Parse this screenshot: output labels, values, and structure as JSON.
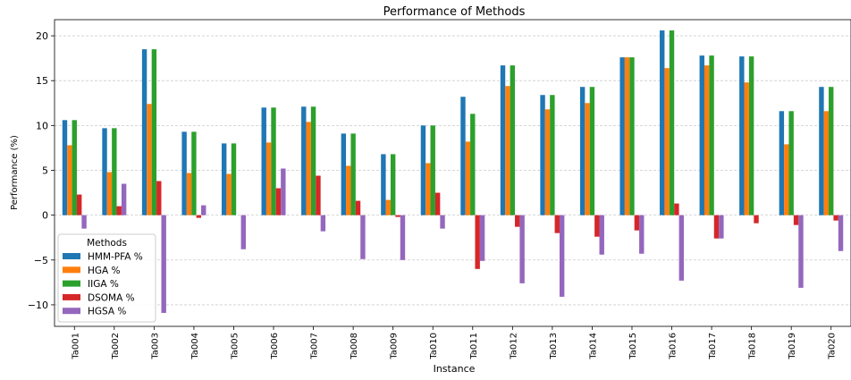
{
  "chart_data": {
    "type": "bar",
    "title": "Performance of Methods",
    "xlabel": "Instance",
    "ylabel": "Performance (%)",
    "ylim": [
      -12.4,
      21.8
    ],
    "yticks": [
      -10,
      -5,
      0,
      5,
      10,
      15,
      20
    ],
    "ytick_labels": [
      "−10",
      "−5",
      "0",
      "5",
      "10",
      "15",
      "20"
    ],
    "grid": true,
    "legend_position": "lower-left",
    "legend_title": "Methods",
    "categories": [
      "Ta001",
      "Ta002",
      "Ta003",
      "Ta004",
      "Ta005",
      "Ta006",
      "Ta007",
      "Ta008",
      "Ta009",
      "Ta010",
      "Ta011",
      "Ta012",
      "Ta013",
      "Ta014",
      "Ta015",
      "Ta016",
      "Ta017",
      "Ta018",
      "Ta019",
      "Ta020"
    ],
    "series": [
      {
        "name": "HMM-PFA %",
        "color": "#1f77b4",
        "values": [
          10.6,
          9.7,
          18.5,
          9.3,
          8.0,
          12.0,
          12.1,
          9.1,
          6.8,
          10.0,
          13.2,
          16.7,
          13.4,
          14.3,
          17.6,
          20.6,
          17.8,
          17.7,
          11.6,
          14.3
        ]
      },
      {
        "name": "HGA %",
        "color": "#ff7f0e",
        "values": [
          7.8,
          4.8,
          12.4,
          4.7,
          4.6,
          8.1,
          10.4,
          5.5,
          1.7,
          5.8,
          8.2,
          14.4,
          11.8,
          12.5,
          17.6,
          16.4,
          16.7,
          14.8,
          7.9,
          11.6
        ]
      },
      {
        "name": "IIGA %",
        "color": "#2ca02c",
        "values": [
          10.6,
          9.7,
          18.5,
          9.3,
          8.0,
          12.0,
          12.1,
          9.1,
          6.8,
          10.0,
          11.3,
          16.7,
          13.4,
          14.3,
          17.6,
          20.6,
          17.8,
          17.7,
          11.6,
          14.3
        ]
      },
      {
        "name": "DSOMA %",
        "color": "#d62728",
        "values": [
          2.3,
          1.0,
          3.8,
          -0.3,
          0.0,
          3.0,
          4.4,
          1.6,
          -0.2,
          2.5,
          -6.0,
          -1.3,
          -2.0,
          -2.4,
          -1.7,
          1.3,
          -2.6,
          -0.9,
          -1.1,
          -0.6
        ]
      },
      {
        "name": "HGSA %",
        "color": "#9467bd",
        "values": [
          -1.5,
          3.5,
          -10.9,
          1.1,
          -3.8,
          5.2,
          -1.8,
          -4.9,
          -5.0,
          -1.5,
          -5.1,
          -7.6,
          -9.1,
          -4.4,
          -4.3,
          -7.3,
          -2.6,
          0.0,
          -8.1,
          -4.0
        ]
      }
    ]
  }
}
